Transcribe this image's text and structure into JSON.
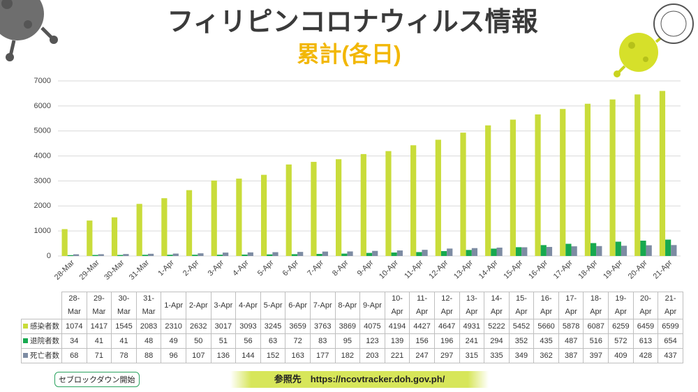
{
  "chart_data": {
    "type": "bar",
    "title": "フィリピンコロナウィルス情報",
    "subtitle": "累計(各日)",
    "annotation": "セブロックダウン開始",
    "source": "参照先　https://ncovtracker.doh.gov.ph/",
    "categories": [
      "28-Mar",
      "29-Mar",
      "30-Mar",
      "31-Mar",
      "1-Apr",
      "2-Apr",
      "3-Apr",
      "4-Apr",
      "5-Apr",
      "6-Apr",
      "7-Apr",
      "8-Apr",
      "9-Apr",
      "10-Apr",
      "11-Apr",
      "12-Apr",
      "13-Apr",
      "14-Apr",
      "15-Apr",
      "16-Apr",
      "17-Apr",
      "18-Apr",
      "19-Apr",
      "20-Apr",
      "21-Apr"
    ],
    "series": [
      {
        "name": "感染者数",
        "color": "#c9dc3a",
        "values": [
          1074,
          1417,
          1545,
          2083,
          2310,
          2632,
          3017,
          3093,
          3245,
          3659,
          3763,
          3869,
          4075,
          4194,
          4427,
          4647,
          4931,
          5222,
          5452,
          5660,
          5878,
          6087,
          6259,
          6459,
          6599
        ]
      },
      {
        "name": "退院者数",
        "color": "#17a94f",
        "values": [
          34,
          41,
          41,
          48,
          49,
          50,
          51,
          56,
          63,
          72,
          83,
          95,
          123,
          139,
          156,
          196,
          241,
          294,
          352,
          435,
          487,
          516,
          572,
          613,
          654
        ]
      },
      {
        "name": "死亡者数",
        "color": "#7d8ca3",
        "values": [
          68,
          71,
          78,
          88,
          96,
          107,
          136,
          144,
          152,
          163,
          177,
          182,
          203,
          221,
          247,
          297,
          315,
          335,
          349,
          362,
          387,
          397,
          409,
          428,
          437
        ]
      }
    ],
    "ylim": [
      0,
      7000
    ],
    "yticks": [
      0,
      1000,
      2000,
      3000,
      4000,
      5000,
      6000,
      7000
    ],
    "grid": true
  }
}
